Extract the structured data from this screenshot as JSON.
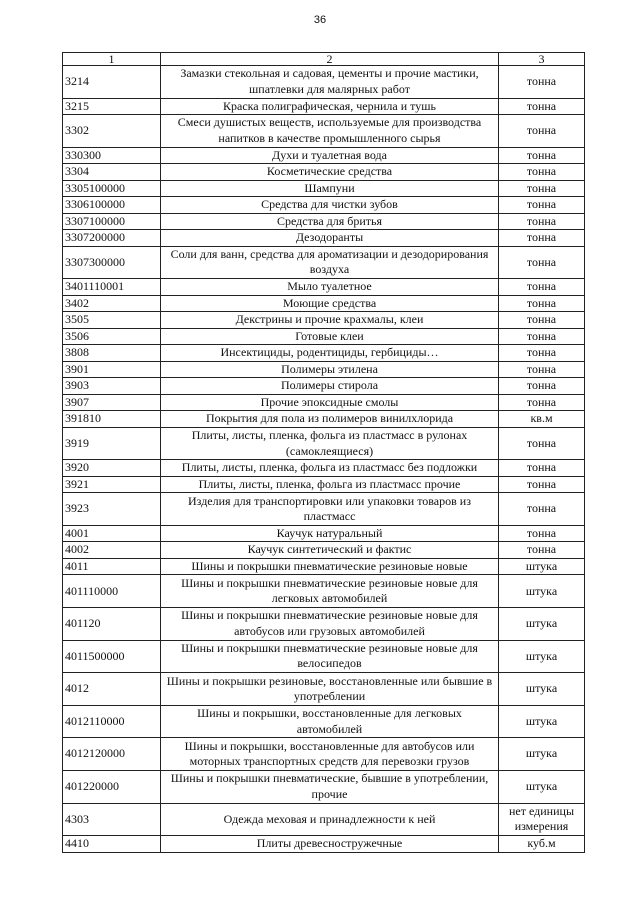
{
  "page_number": "36",
  "table": {
    "headers": [
      "1",
      "2",
      "3"
    ],
    "rows": [
      {
        "code": "3214",
        "name": "Замазки стекольная и садовая, цементы и прочие мастики, шпатлевки для малярных работ",
        "unit": "тонна",
        "lines": 2
      },
      {
        "code": "3215",
        "name": "Краска полиграфическая, чернила и тушь",
        "unit": "тонна",
        "lines": 1
      },
      {
        "code": "3302",
        "name": "Смеси душистых веществ, используемые для производства напитков в качестве промышленного сырья",
        "unit": "тонна",
        "lines": 2
      },
      {
        "code": "330300",
        "name": "Духи и туалетная вода",
        "unit": "тонна",
        "lines": 1
      },
      {
        "code": "3304",
        "name": "Косметические средства",
        "unit": "тонна",
        "lines": 1
      },
      {
        "code": "3305100000",
        "name": "Шампуни",
        "unit": "тонна",
        "lines": 1
      },
      {
        "code": "3306100000",
        "name": "Средства для чистки зубов",
        "unit": "тонна",
        "lines": 1
      },
      {
        "code": "3307100000",
        "name": "Средства для бритья",
        "unit": "тонна",
        "lines": 1
      },
      {
        "code": "3307200000",
        "name": "Дезодоранты",
        "unit": "тонна",
        "lines": 1
      },
      {
        "code": "3307300000",
        "name": "Соли для ванн, средства для ароматизации и дезодорирования воздуха",
        "unit": "тонна",
        "lines": 2
      },
      {
        "code": "3401110001",
        "name": "Мыло туалетное",
        "unit": "тонна",
        "lines": 1
      },
      {
        "code": "3402",
        "name": "Моющие средства",
        "unit": "тонна",
        "lines": 1
      },
      {
        "code": "3505",
        "name": "Декстрины и прочие крахмалы, клеи",
        "unit": "тонна",
        "lines": 1
      },
      {
        "code": "3506",
        "name": "Готовые клеи",
        "unit": "тонна",
        "lines": 1
      },
      {
        "code": "3808",
        "name": "Инсектициды, родентициды, гербициды…",
        "unit": "тонна",
        "lines": 1
      },
      {
        "code": "3901",
        "name": "Полимеры этилена",
        "unit": "тонна",
        "lines": 1
      },
      {
        "code": "3903",
        "name": "Полимеры стирола",
        "unit": "тонна",
        "lines": 1
      },
      {
        "code": "3907",
        "name": "Прочие эпоксидные смолы",
        "unit": "тонна",
        "lines": 1
      },
      {
        "code": "391810",
        "name": "Покрытия для пола из полимеров винилхлорида",
        "unit": "кв.м",
        "lines": 1
      },
      {
        "code": "3919",
        "name": "Плиты, листы, пленка, фольга из пластмасс в рулонах (самоклеящиеся)",
        "unit": "тонна",
        "lines": 2
      },
      {
        "code": "3920",
        "name": "Плиты, листы, пленка, фольга из пластмасс без подложки",
        "unit": "тонна",
        "lines": 1
      },
      {
        "code": "3921",
        "name": "Плиты, листы, пленка, фольга из пластмасс прочие",
        "unit": "тонна",
        "lines": 1
      },
      {
        "code": "3923",
        "name": "Изделия для транспортировки или упаковки товаров из пластмасс",
        "unit": "тонна",
        "lines": 2
      },
      {
        "code": "4001",
        "name": "Каучук натуральный",
        "unit": "тонна",
        "lines": 1
      },
      {
        "code": "4002",
        "name": "Каучук синтетический и фактис",
        "unit": "тонна",
        "lines": 1
      },
      {
        "code": "4011",
        "name": "Шины и покрышки пневматические резиновые новые",
        "unit": "штука",
        "lines": 1
      },
      {
        "code": "401110000",
        "name": "Шины и покрышки пневматические резиновые новые для легковых автомобилей",
        "unit": "штука",
        "lines": 2
      },
      {
        "code": "401120",
        "name": "Шины и покрышки пневматические резиновые новые для автобусов или грузовых автомобилей",
        "unit": "штука",
        "lines": 2
      },
      {
        "code": "4011500000",
        "name": "Шины и покрышки пневматические резиновые новые для велосипедов",
        "unit": "штука",
        "lines": 2
      },
      {
        "code": "4012",
        "name": "Шины и покрышки резиновые, восстановленные или бывшие в употреблении",
        "unit": "штука",
        "lines": 2
      },
      {
        "code": "4012110000",
        "name": "Шины и покрышки, восстановленные для легковых автомобилей",
        "unit": "штука",
        "lines": 2
      },
      {
        "code": "4012120000",
        "name": "Шины и покрышки, восстановленные для автобусов или моторных транспортных средств для перевозки грузов",
        "unit": "штука",
        "lines": 2
      },
      {
        "code": "401220000",
        "name": "Шины и покрышки пневматические, бывшие в употреблении, прочие",
        "unit": "штука",
        "lines": 2
      },
      {
        "code": "4303",
        "name": "Одежда меховая и принадлежности к ней",
        "unit": "нет единицы измерения",
        "lines": 2
      },
      {
        "code": "4410",
        "name": "Плиты древесностружечные",
        "unit": "куб.м",
        "lines": 1
      }
    ]
  }
}
